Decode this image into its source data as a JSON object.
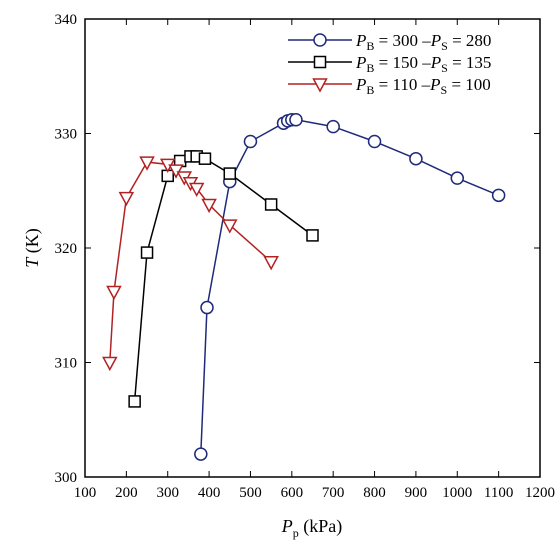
{
  "chart_data": {
    "type": "line",
    "xlabel": {
      "var": "P",
      "sub": "p",
      "unit": " (kPa)"
    },
    "ylabel": {
      "var": "T",
      "unit": " (K)"
    },
    "xlim": [
      100,
      1200
    ],
    "ylim": [
      300,
      340
    ],
    "xticks": [
      100,
      200,
      300,
      400,
      500,
      600,
      700,
      800,
      900,
      1000,
      1100,
      1200
    ],
    "yticks": [
      300,
      310,
      320,
      330,
      340
    ],
    "grid": false,
    "legend_position": "top-right",
    "series": [
      {
        "label_parts": [
          "P",
          "B",
          " = 300 –",
          "P",
          "S",
          " = 280"
        ],
        "marker": "circle",
        "color": "#1f2a7a",
        "x": [
          380,
          395,
          450,
          500,
          580,
          590,
          600,
          610,
          700,
          800,
          900,
          1000,
          1100
        ],
        "y": [
          302.0,
          314.8,
          325.8,
          329.3,
          330.9,
          331.1,
          331.2,
          331.2,
          330.6,
          329.3,
          327.8,
          326.1,
          324.6
        ]
      },
      {
        "label_parts": [
          "P",
          "B",
          " = 150 –",
          "P",
          "S",
          " = 135"
        ],
        "marker": "square",
        "color": "#000000",
        "x": [
          220,
          250,
          300,
          330,
          355,
          370,
          390,
          450,
          550,
          650
        ],
        "y": [
          306.6,
          319.6,
          326.3,
          327.6,
          328.0,
          328.0,
          327.8,
          326.5,
          323.8,
          321.1
        ]
      },
      {
        "label_parts": [
          "P",
          "B",
          " = 110 –",
          "P",
          "S",
          " = 100"
        ],
        "marker": "triangle-down",
        "color": "#b22222",
        "x": [
          160,
          170,
          200,
          250,
          300,
          320,
          340,
          355,
          370,
          400,
          450,
          550
        ],
        "y": [
          310.0,
          316.2,
          324.4,
          327.5,
          327.3,
          326.8,
          326.2,
          325.7,
          325.2,
          323.8,
          322.0,
          318.8
        ]
      }
    ]
  }
}
